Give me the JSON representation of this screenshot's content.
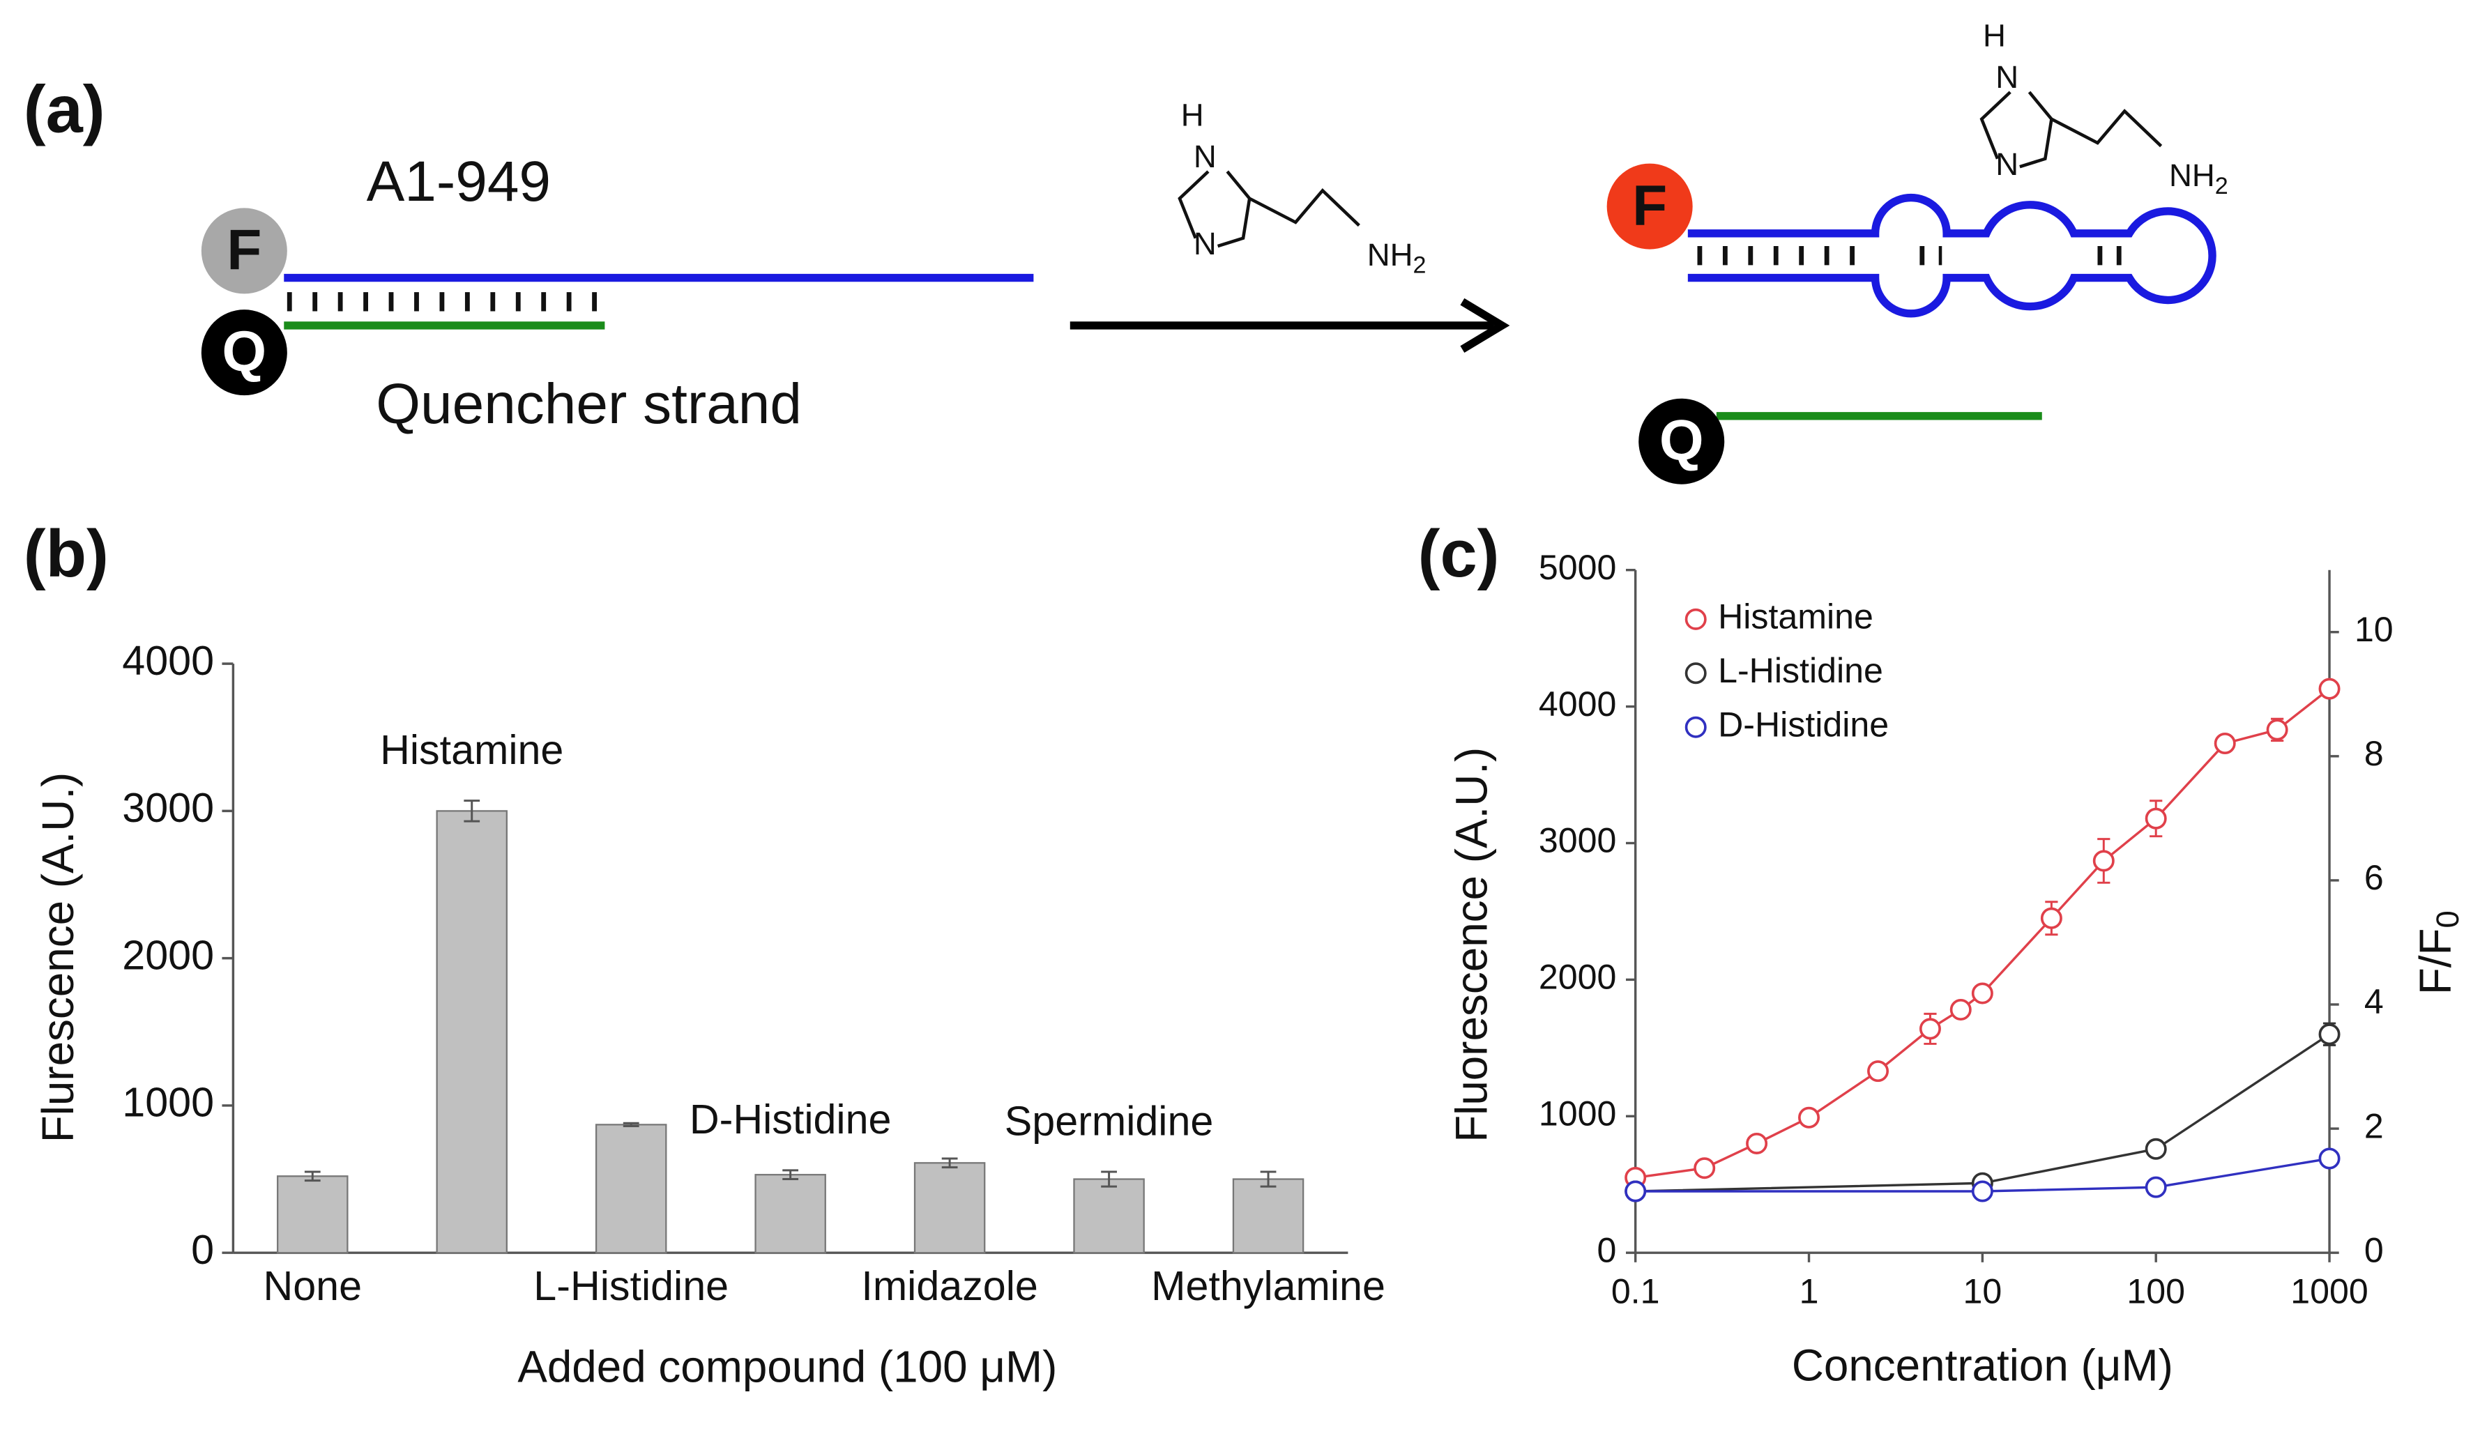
{
  "figure": {
    "panel_a": "(a)",
    "aptamer": "A1-949",
    "quencher": "Quencher strand",
    "fluor": "F",
    "quench": "Q",
    "mol": {
      "h": "H",
      "n": "N",
      "nh": "NH",
      "sub": "2"
    }
  },
  "chart_data": [
    {
      "type": "bar",
      "panel": "(b)",
      "categories": [
        "None",
        "Histamine",
        "L-Histidine",
        "D-Histidine",
        "Imidazole",
        "Spermidine",
        "Methylamine"
      ],
      "values": [
        520,
        3000,
        870,
        530,
        610,
        500,
        500
      ],
      "errors": [
        30,
        70,
        10,
        30,
        30,
        50,
        50
      ],
      "color": "#c0c0c0",
      "ylim": [
        0,
        4000
      ],
      "yticks": [
        0,
        1000,
        2000,
        3000,
        4000
      ],
      "xlabel": "Added compound (100 μM)",
      "ylabel": "Flurescence (A.U.)"
    },
    {
      "type": "line",
      "panel": "(c)",
      "xscale": "log",
      "xlim": [
        0.1,
        1000
      ],
      "xticks": [
        0.1,
        1,
        10,
        100,
        1000
      ],
      "ylim": [
        0,
        5000
      ],
      "yticks": [
        0,
        1000,
        2000,
        3000,
        4000,
        5000
      ],
      "y2lim": [
        0,
        11
      ],
      "y2ticks": [
        0,
        2,
        4,
        6,
        8,
        10
      ],
      "xlabel": "Concentration (μM)",
      "ylabel": "Fluorescence (A.U.)",
      "y2label": "F/F",
      "y2label_sub": "0",
      "legend": "upper left",
      "series": [
        {
          "name": "Histamine",
          "color": "#e0404a",
          "x": [
            0.1,
            0.25,
            0.5,
            1,
            2.5,
            5,
            7.5,
            10,
            25,
            50,
            100,
            250,
            500,
            1000
          ],
          "values": [
            550,
            620,
            800,
            990,
            1330,
            1640,
            1780,
            1900,
            2450,
            2870,
            3180,
            3730,
            3830,
            4130
          ],
          "errors": [
            30,
            30,
            30,
            30,
            50,
            110,
            40,
            40,
            120,
            160,
            130,
            40,
            80,
            40
          ]
        },
        {
          "name": "L-Histidine",
          "color": "#333333",
          "x": [
            0.1,
            10,
            100,
            1000
          ],
          "values": [
            450,
            510,
            760,
            1600
          ],
          "errors": [
            20,
            20,
            30,
            80
          ]
        },
        {
          "name": "D-Histidine",
          "color": "#3030c0",
          "x": [
            0.1,
            10,
            100,
            1000
          ],
          "values": [
            450,
            450,
            480,
            690
          ],
          "errors": [
            20,
            20,
            20,
            30
          ]
        }
      ]
    }
  ]
}
